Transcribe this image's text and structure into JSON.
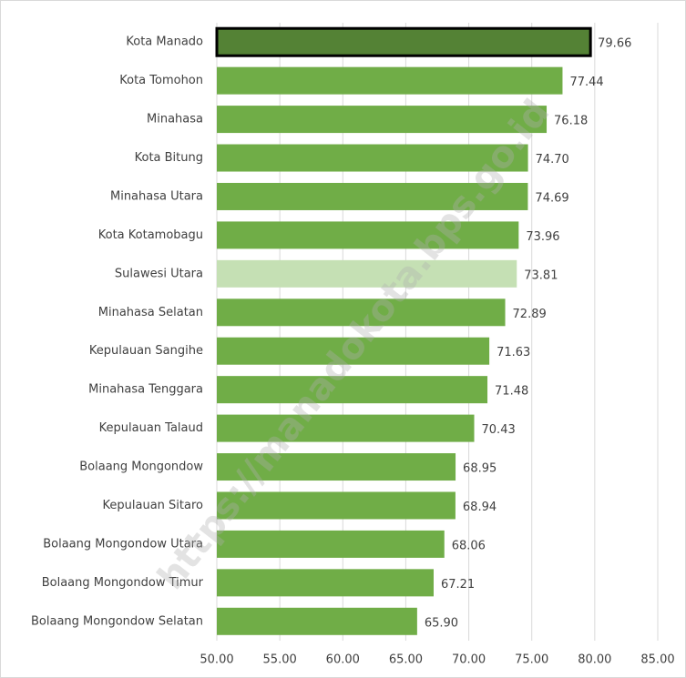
{
  "chart_data": {
    "type": "barh",
    "categories": [
      "Kota Manado",
      "Kota Tomohon",
      "Minahasa",
      "Kota Bitung",
      "Minahasa Utara",
      "Kota Kotamobagu",
      "Sulawesi Utara",
      "Minahasa Selatan",
      "Kepulauan Sangihe",
      "Minahasa Tenggara",
      "Kepulauan Talaud",
      "Bolaang Mongondow",
      "Kepulauan Sitaro",
      "Bolaang Mongondow Utara",
      "Bolaang Mongondow Timur",
      "Bolaang Mongondow Selatan"
    ],
    "values": [
      79.66,
      77.44,
      76.18,
      74.7,
      74.69,
      73.96,
      73.81,
      72.89,
      71.63,
      71.48,
      70.43,
      68.95,
      68.94,
      68.06,
      67.21,
      65.9
    ],
    "value_labels": [
      "79.66",
      "77.44",
      "76.18",
      "74.70",
      "74.69",
      "73.96",
      "73.81",
      "72.89",
      "71.63",
      "71.48",
      "70.43",
      "68.95",
      "68.94",
      "68.06",
      "67.21",
      "65.90"
    ],
    "colors": [
      "#548235",
      "#70ad47",
      "#70ad47",
      "#70ad47",
      "#70ad47",
      "#70ad47",
      "#c5e0b4",
      "#70ad47",
      "#70ad47",
      "#70ad47",
      "#70ad47",
      "#70ad47",
      "#70ad47",
      "#70ad47",
      "#70ad47",
      "#70ad47"
    ],
    "edgecolors": [
      "#000000",
      null,
      null,
      null,
      null,
      null,
      null,
      null,
      null,
      null,
      null,
      null,
      null,
      null,
      null,
      null
    ],
    "xlim": [
      50,
      85
    ],
    "xticks": [
      {
        "value": 50,
        "label": "50.00"
      },
      {
        "value": 55,
        "label": "55.00"
      },
      {
        "value": 60,
        "label": "60.00"
      },
      {
        "value": 65,
        "label": "65.00"
      },
      {
        "value": 70,
        "label": "70.00"
      },
      {
        "value": 75,
        "label": "75.00"
      },
      {
        "value": 80,
        "label": "80.00"
      },
      {
        "value": 85,
        "label": "85.00"
      }
    ],
    "grid": true,
    "watermark": "https://manadokota.bps.go.id"
  }
}
